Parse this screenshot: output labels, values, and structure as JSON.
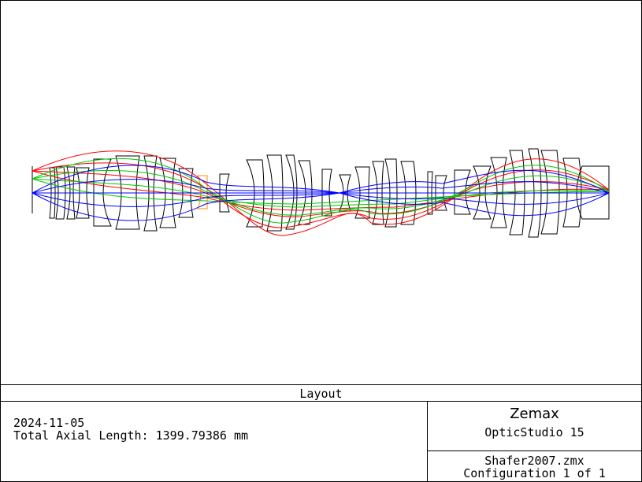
{
  "layout_title": "Layout",
  "info": {
    "date": "2024-11-05",
    "total_axial_length": "Total Axial Length: 1399.79386 mm",
    "brand": "Zemax",
    "product": "OpticStudio 15",
    "file_name": "Shafer2007.zmx",
    "configuration": "Configuration 1 of 1"
  },
  "colors": {
    "field_1": "#0000ff",
    "field_2": "#00c800",
    "field_3": "#ff0000",
    "lens_outline": "#000000",
    "accent_element": "#ff8c00"
  }
}
